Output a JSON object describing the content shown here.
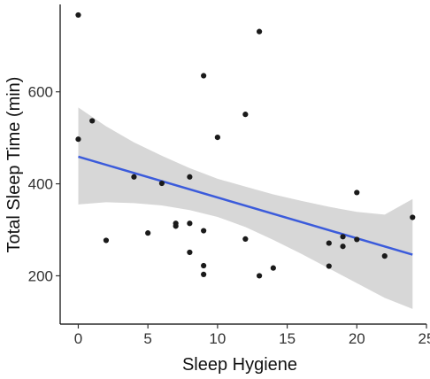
{
  "chart_data": {
    "type": "scatter",
    "xlabel": "Sleep Hygiene",
    "ylabel": "Total Sleep Time (min)",
    "xlim": [
      -1.3,
      25
    ],
    "ylim": [
      95,
      790
    ],
    "xticks": [
      0,
      5,
      10,
      15,
      20,
      25
    ],
    "yticks": [
      200,
      400,
      600
    ],
    "grid": false,
    "colors": {
      "points": "#1a1a1a",
      "fit_line": "#3b5bdb",
      "confidence_band": "#d3d3d3",
      "axis": "#000000"
    },
    "points": [
      {
        "x": 0,
        "y": 767
      },
      {
        "x": 0,
        "y": 497
      },
      {
        "x": 1,
        "y": 537
      },
      {
        "x": 2,
        "y": 277
      },
      {
        "x": 4,
        "y": 415
      },
      {
        "x": 5,
        "y": 293
      },
      {
        "x": 6,
        "y": 401
      },
      {
        "x": 7,
        "y": 314
      },
      {
        "x": 7,
        "y": 308
      },
      {
        "x": 8,
        "y": 415
      },
      {
        "x": 8,
        "y": 314
      },
      {
        "x": 8,
        "y": 251
      },
      {
        "x": 9,
        "y": 635
      },
      {
        "x": 9,
        "y": 298
      },
      {
        "x": 9,
        "y": 222
      },
      {
        "x": 9,
        "y": 203
      },
      {
        "x": 10,
        "y": 501
      },
      {
        "x": 12,
        "y": 551
      },
      {
        "x": 12,
        "y": 280
      },
      {
        "x": 13,
        "y": 731
      },
      {
        "x": 13,
        "y": 200
      },
      {
        "x": 14,
        "y": 217
      },
      {
        "x": 18,
        "y": 271
      },
      {
        "x": 18,
        "y": 221
      },
      {
        "x": 19,
        "y": 285
      },
      {
        "x": 19,
        "y": 264
      },
      {
        "x": 20,
        "y": 381
      },
      {
        "x": 20,
        "y": 279
      },
      {
        "x": 22,
        "y": 243
      },
      {
        "x": 24,
        "y": 327
      }
    ],
    "fit": {
      "x": [
        0,
        24
      ],
      "y": [
        459,
        246
      ]
    },
    "confidence_band": {
      "x": [
        0,
        2,
        4,
        6,
        8,
        10,
        12,
        14,
        16,
        18,
        20,
        22,
        24
      ],
      "lower": [
        355,
        360,
        358,
        353,
        343,
        328,
        306,
        278,
        248,
        216,
        184,
        152,
        128
      ],
      "upper": [
        566,
        525,
        490,
        461,
        434,
        411,
        394,
        377,
        363,
        350,
        339,
        333,
        367
      ]
    }
  }
}
